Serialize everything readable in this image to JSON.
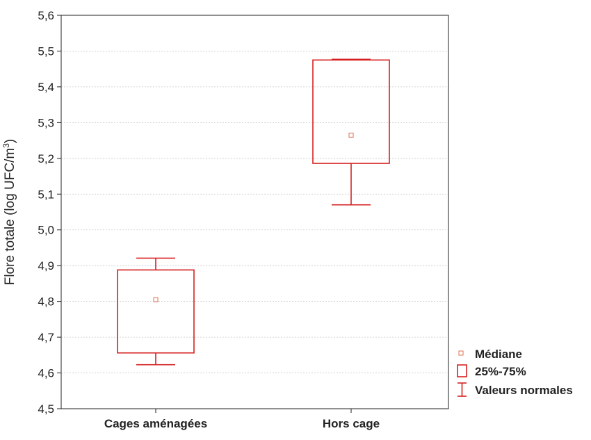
{
  "chart_data": {
    "type": "box",
    "ylabel_main": "Flore totale (log UFC/m",
    "ylabel_sup": "3",
    "ylabel_end": ")",
    "ylim": [
      4.5,
      5.6
    ],
    "yticks": [
      "4,5",
      "4,6",
      "4,7",
      "4,8",
      "4,9",
      "5,0",
      "5,1",
      "5,2",
      "5,3",
      "5,4",
      "5,5",
      "5,6"
    ],
    "grid": true,
    "categories": [
      "Cages aménagées",
      "Hors cage"
    ],
    "boxes": [
      {
        "category": "Cages aménagées",
        "median": 4.805,
        "q1": 4.656,
        "q3": 4.888,
        "min": 4.623,
        "max": 4.921
      },
      {
        "category": "Hors cage",
        "median": 5.265,
        "q1": 5.186,
        "q3": 5.475,
        "min": 5.07,
        "max": 5.477
      }
    ],
    "colors": {
      "box": "#d62020",
      "median": "#e07050",
      "grid": "#c8c8c8"
    },
    "legend": {
      "placement": "right",
      "items": [
        {
          "label": "Médiane",
          "icon": "median-square-icon"
        },
        {
          "label": "25%-75%",
          "icon": "box-rect-icon"
        },
        {
          "label": "Valeurs normales",
          "icon": "whisker-icon"
        }
      ]
    }
  }
}
